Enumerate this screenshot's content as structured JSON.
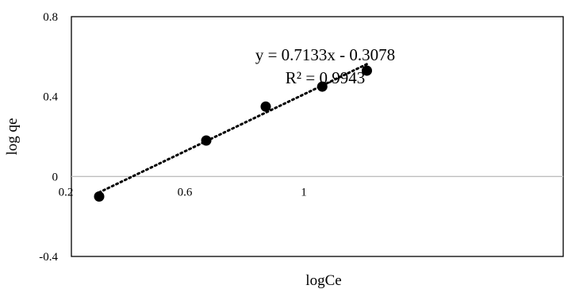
{
  "chart_data": {
    "type": "scatter",
    "xlabel": "logCe",
    "ylabel": "log qe",
    "xlim": [
      0.2,
      1.28
    ],
    "ylim": [
      -0.4,
      0.8
    ],
    "xticks": [
      0.2,
      0.6,
      1.0
    ],
    "xtick_labels": [
      "0.2",
      "0.6",
      "1"
    ],
    "yticks": [
      -0.4,
      0,
      0.4,
      0.8
    ],
    "ytick_labels": [
      "-0.4",
      "0",
      "0.4",
      "0.8"
    ],
    "grid": false,
    "points": [
      {
        "x": 0.32,
        "y": -0.1
      },
      {
        "x": 0.68,
        "y": 0.18
      },
      {
        "x": 0.88,
        "y": 0.35
      },
      {
        "x": 1.07,
        "y": 0.45
      },
      {
        "x": 1.22,
        "y": 0.53
      }
    ],
    "trendline": {
      "type": "linear",
      "slope": 0.7133,
      "intercept": -0.3078,
      "style": "dotted"
    },
    "annotations": [
      "y = 0.7133x - 0.3078",
      "R² = 0.9943"
    ],
    "colors": {
      "marker": "#000000",
      "trendline": "#000000",
      "zero_line": "#bfbfbf",
      "frame": "#000000"
    }
  }
}
